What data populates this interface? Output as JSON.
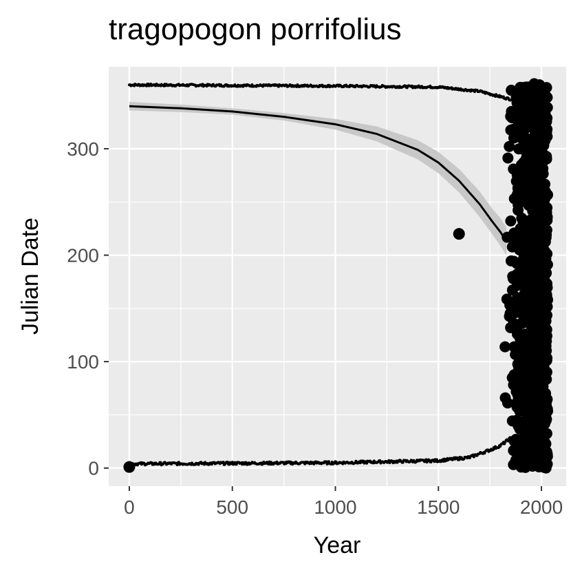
{
  "chart_data": {
    "type": "scatter",
    "title": "tragopogon porrifolius",
    "xlabel": "Year",
    "ylabel": "Julian Date",
    "xlim": [
      -100,
      2120
    ],
    "ylim": [
      -17,
      377
    ],
    "xticks": [
      0,
      500,
      1000,
      1500,
      2000
    ],
    "yticks": [
      0,
      100,
      200,
      300
    ],
    "grid": true,
    "background": "#ebebeb",
    "point_color": "#000000",
    "ribbon_color": "#c4c4c4",
    "outlier_points": [
      {
        "x": 0,
        "y": 1
      },
      {
        "x": 1600,
        "y": 220
      }
    ],
    "upper_band": {
      "x": [
        0,
        500,
        1000,
        1500,
        1700,
        1800,
        1860
      ],
      "y": [
        360,
        359.5,
        359,
        358,
        354,
        349,
        346
      ]
    },
    "lower_band": {
      "x": [
        0,
        500,
        1000,
        1500,
        1650,
        1750,
        1800,
        1850
      ],
      "y": [
        4,
        4.5,
        5,
        7,
        10,
        17,
        21,
        28
      ]
    },
    "dense_cluster": {
      "x_range": [
        1820,
        2030
      ],
      "y_range": [
        0,
        362
      ]
    },
    "smooth_line": {
      "x": [
        0,
        250,
        500,
        750,
        1000,
        1200,
        1400,
        1500,
        1600,
        1700,
        1760,
        1800,
        1830
      ],
      "y": [
        340,
        338,
        335,
        330,
        323,
        314,
        299,
        287,
        270,
        248,
        232,
        222,
        213
      ]
    },
    "smooth_ribbon_halfwidth": [
      4,
      3.5,
      3,
      3.5,
      5,
      7,
      9,
      10,
      11,
      12,
      12,
      13,
      13
    ]
  }
}
